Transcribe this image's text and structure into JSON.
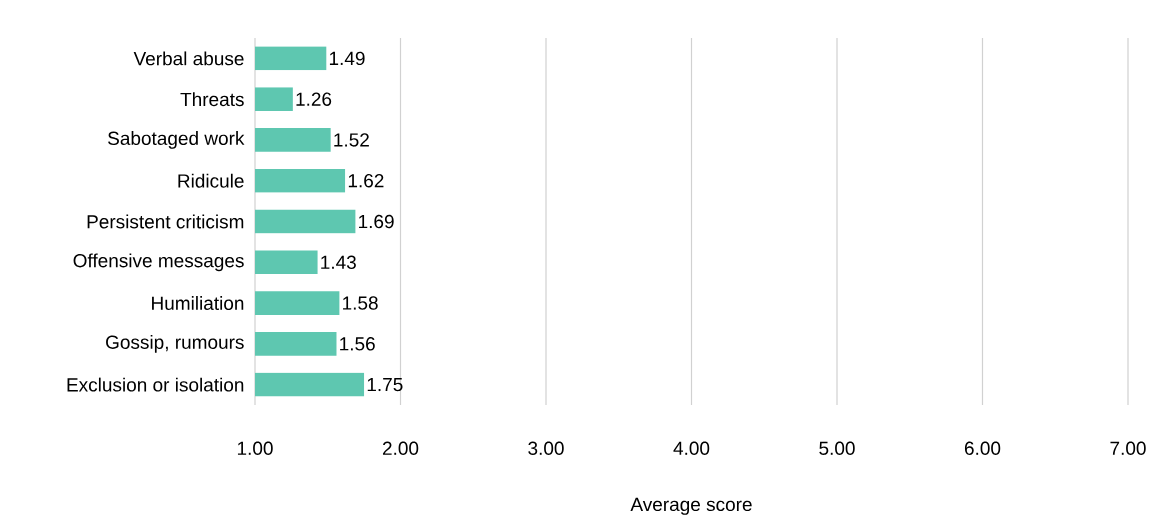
{
  "chart_data": {
    "type": "bar",
    "orientation": "horizontal",
    "xlabel": "Average score",
    "categories": [
      "Verbal abuse",
      "Threats",
      "Sabotaged work",
      "Ridicule",
      "Persistent criticism",
      "Offensive messages",
      "Humiliation",
      "Gossip, rumours",
      "Exclusion or isolation"
    ],
    "values": [
      1.49,
      1.26,
      1.52,
      1.62,
      1.69,
      1.43,
      1.58,
      1.56,
      1.75
    ],
    "color": "#5ec7b0",
    "data_labels": true,
    "grid": "x",
    "xlim": [
      1,
      7
    ],
    "xticks": [
      {
        "value": 1,
        "label": "1.00"
      },
      {
        "value": 2,
        "label": "2.00"
      },
      {
        "value": 3,
        "label": "3.00"
      },
      {
        "value": 4,
        "label": "4.00"
      },
      {
        "value": 5,
        "label": "5.00"
      },
      {
        "value": 6,
        "label": "6.00"
      },
      {
        "value": 7,
        "label": "7.00"
      }
    ]
  }
}
